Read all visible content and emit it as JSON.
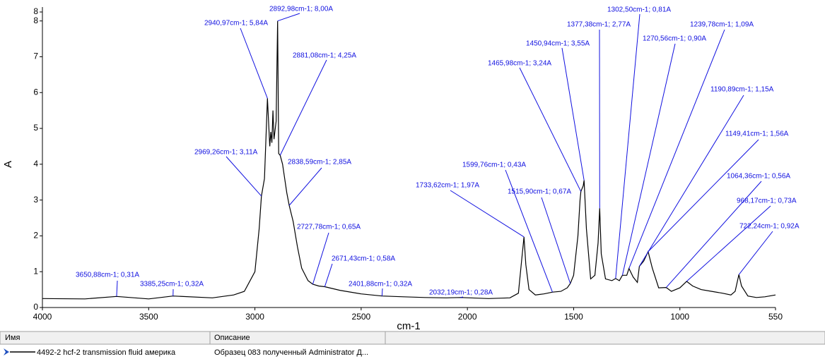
{
  "chart_data": {
    "type": "line",
    "xlabel": "cm-1",
    "ylabel": "A",
    "xlim": [
      4000,
      550
    ],
    "ylim": [
      0,
      8.25
    ],
    "xticks": [
      4000,
      3500,
      3000,
      2500,
      2000,
      1500,
      1000,
      550
    ],
    "yticks": [
      0,
      1,
      2,
      3,
      4,
      5,
      6,
      7,
      8,
      {
        "value": 8.25,
        "label": "8"
      }
    ],
    "x": [
      4000,
      3800,
      3650.88,
      3500,
      3385.25,
      3200,
      3100,
      3050,
      3000,
      2980,
      2969.26,
      2955,
      2940.97,
      2930,
      2925,
      2920,
      2915,
      2910,
      2900,
      2892.98,
      2888,
      2881.08,
      2870,
      2860,
      2850,
      2838.59,
      2820,
      2800,
      2780,
      2750,
      2727.78,
      2700,
      2671.43,
      2600,
      2500,
      2401.88,
      2300,
      2200,
      2100,
      2032.19,
      1900,
      1800,
      1760,
      1745,
      1733.62,
      1725,
      1710,
      1680,
      1640,
      1599.76,
      1560,
      1530,
      1515.9,
      1500,
      1480,
      1470,
      1465.98,
      1455,
      1450.94,
      1440,
      1420,
      1400,
      1385,
      1377.38,
      1370,
      1350,
      1320,
      1302.5,
      1285,
      1270.56,
      1250,
      1239.78,
      1220,
      1200,
      1190.89,
      1170,
      1149.41,
      1130,
      1100,
      1064.36,
      1040,
      1000,
      968.17,
      940,
      900,
      850,
      800,
      760,
      740,
      722.24,
      710,
      680,
      640,
      600,
      550
    ],
    "series": [
      {
        "name": "4492-2 hcf-2 transmission fluid америка",
        "description": "Образец 083 полученный Administrator Д...",
        "color": "#000000",
        "values": [
          0.25,
          0.24,
          0.31,
          0.24,
          0.32,
          0.27,
          0.35,
          0.45,
          1.0,
          2.2,
          3.11,
          3.6,
          5.84,
          4.5,
          4.9,
          4.6,
          5.5,
          4.7,
          5.2,
          8.0,
          4.3,
          4.25,
          4.0,
          3.6,
          3.2,
          2.85,
          2.4,
          1.7,
          1.1,
          0.75,
          0.65,
          0.6,
          0.58,
          0.48,
          0.38,
          0.32,
          0.3,
          0.28,
          0.27,
          0.28,
          0.25,
          0.27,
          0.4,
          1.3,
          1.97,
          1.2,
          0.5,
          0.35,
          0.38,
          0.43,
          0.45,
          0.55,
          0.67,
          0.9,
          2.0,
          3.0,
          3.24,
          3.4,
          3.55,
          2.2,
          0.8,
          0.9,
          1.8,
          2.77,
          1.5,
          0.8,
          0.75,
          0.81,
          0.75,
          0.9,
          0.9,
          1.09,
          0.85,
          0.7,
          1.15,
          1.3,
          1.56,
          1.1,
          0.55,
          0.56,
          0.45,
          0.55,
          0.73,
          0.6,
          0.5,
          0.45,
          0.4,
          0.35,
          0.45,
          0.92,
          0.6,
          0.32,
          0.28,
          0.3,
          0.35
        ]
      }
    ],
    "annotation_color": "#1010e0",
    "annotations": [
      {
        "x": 3650.88,
        "y": 0.31,
        "label": "3650,88cm-1; 0,31A"
      },
      {
        "x": 3385.25,
        "y": 0.32,
        "label": "3385,25cm-1; 0,32A"
      },
      {
        "x": 2969.26,
        "y": 3.11,
        "label": "2969,26cm-1; 3,11A"
      },
      {
        "x": 2940.97,
        "y": 5.84,
        "label": "2940,97cm-1; 5,84A"
      },
      {
        "x": 2892.98,
        "y": 8.0,
        "label": "2892,98cm-1; 8,00A"
      },
      {
        "x": 2881.08,
        "y": 4.25,
        "label": "2881,08cm-1; 4,25A"
      },
      {
        "x": 2838.59,
        "y": 2.85,
        "label": "2838,59cm-1; 2,85A"
      },
      {
        "x": 2727.78,
        "y": 0.65,
        "label": "2727,78cm-1; 0,65A"
      },
      {
        "x": 2671.43,
        "y": 0.58,
        "label": "2671,43cm-1; 0,58A"
      },
      {
        "x": 2401.88,
        "y": 0.32,
        "label": "2401,88cm-1; 0,32A"
      },
      {
        "x": 2032.19,
        "y": 0.28,
        "label": "2032,19cm-1; 0,28A"
      },
      {
        "x": 1733.62,
        "y": 1.97,
        "label": "1733,62cm-1; 1,97A"
      },
      {
        "x": 1599.76,
        "y": 0.43,
        "label": "1599,76cm-1; 0,43A"
      },
      {
        "x": 1515.9,
        "y": 0.67,
        "label": "1515,90cm-1; 0,67A"
      },
      {
        "x": 1465.98,
        "y": 3.24,
        "label": "1465,98cm-1; 3,24A"
      },
      {
        "x": 1450.94,
        "y": 3.55,
        "label": "1450,94cm-1; 3,55A"
      },
      {
        "x": 1377.38,
        "y": 2.77,
        "label": "1377,38cm-1; 2,77A"
      },
      {
        "x": 1302.5,
        "y": 0.81,
        "label": "1302,50cm-1; 0,81A"
      },
      {
        "x": 1270.56,
        "y": 0.9,
        "label": "1270,56cm-1; 0,90A"
      },
      {
        "x": 1239.78,
        "y": 1.09,
        "label": "1239,78cm-1; 1,09A"
      },
      {
        "x": 1190.89,
        "y": 1.15,
        "label": "1190,89cm-1; 1,15A"
      },
      {
        "x": 1149.41,
        "y": 1.56,
        "label": "1149,41cm-1; 1,56A"
      },
      {
        "x": 1064.36,
        "y": 0.56,
        "label": "1064,36cm-1; 0,56A"
      },
      {
        "x": 968.17,
        "y": 0.73,
        "label": "968,17cm-1; 0,73A"
      },
      {
        "x": 722.24,
        "y": 0.92,
        "label": "722,24cm-1; 0,92A"
      }
    ],
    "legend": {
      "headers": [
        "Имя",
        "Описание"
      ]
    }
  }
}
